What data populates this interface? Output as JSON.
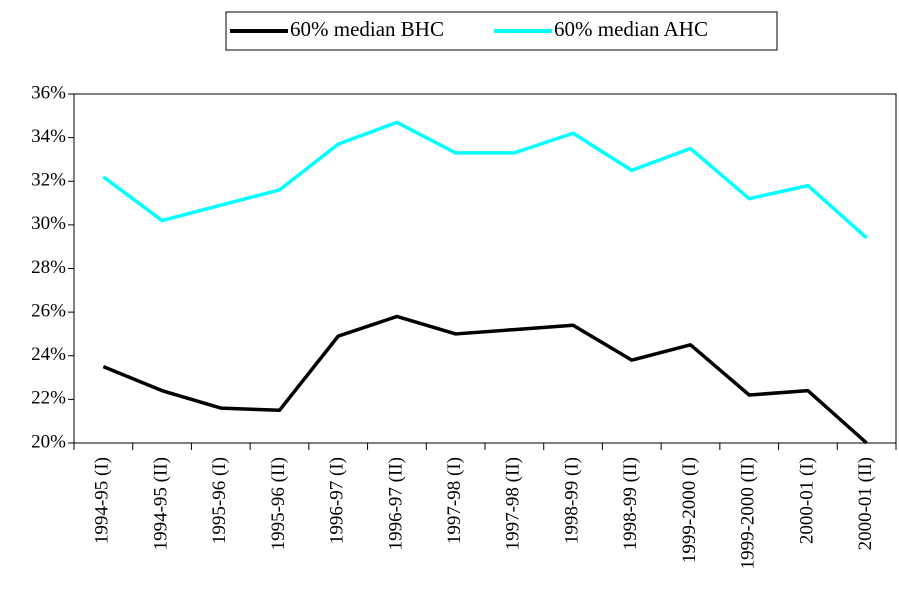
{
  "chart_data": {
    "type": "line",
    "categories": [
      "1994-95 (I)",
      "1994-95 (II)",
      "1995-96 (I)",
      "1995-96 (II)",
      "1996-97 (I)",
      "1996-97 (II)",
      "1997-98 (I)",
      "1997-98 (II)",
      "1998-99 (I)",
      "1998-99 (II)",
      "1999-2000 (I)",
      "1999-2000 (II)",
      "2000-01 (I)",
      "2000-01 (II)"
    ],
    "series": [
      {
        "name": "60% median BHC",
        "color": "#000000",
        "values": [
          23.5,
          22.4,
          21.6,
          21.5,
          24.9,
          25.8,
          25.0,
          25.2,
          25.4,
          23.8,
          24.5,
          22.2,
          22.4,
          20.0
        ]
      },
      {
        "name": "60% median AHC",
        "color": "#00ffff",
        "values": [
          32.2,
          30.2,
          30.9,
          31.6,
          33.7,
          34.7,
          33.3,
          33.3,
          34.2,
          32.5,
          33.5,
          31.2,
          31.8,
          29.4
        ]
      }
    ],
    "ylim": [
      20,
      36
    ],
    "yticks": [
      {
        "value": 20,
        "label": "20%"
      },
      {
        "value": 22,
        "label": "22%"
      },
      {
        "value": 24,
        "label": "24%"
      },
      {
        "value": 26,
        "label": "26%"
      },
      {
        "value": 28,
        "label": "28%"
      },
      {
        "value": 30,
        "label": "30%"
      },
      {
        "value": 32,
        "label": "32%"
      },
      {
        "value": 34,
        "label": "34%"
      },
      {
        "value": 36,
        "label": "36%"
      }
    ],
    "legend": "top"
  }
}
